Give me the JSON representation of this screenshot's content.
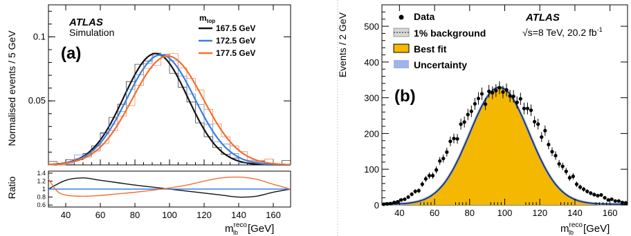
{
  "chart_data": [
    {
      "type": "line",
      "panel_label": "(a)",
      "atlas_label": "ATLAS",
      "atlas_sublabel": "Simulation",
      "legend_title": "m",
      "legend_title_sub": "top",
      "xlabel": "m",
      "xlabel_sup": "reco",
      "xlabel_sub": "lb",
      "xlabel_unit": "[GeV]",
      "ylabel": "Normalised events / 5 GeV",
      "xlim": [
        30,
        170
      ],
      "ylim": [
        0,
        0.125
      ],
      "xticks": [
        40,
        60,
        80,
        100,
        120,
        140,
        160
      ],
      "yticks": [
        0.05,
        0.1
      ],
      "ytick_labels": [
        "0.05",
        "0.1"
      ],
      "series": [
        {
          "name": "167.5 GeV",
          "color": "#111111",
          "mean": 92,
          "sigma": 18.5,
          "peak": 0.087
        },
        {
          "name": "172.5 GeV",
          "color": "#3a7be0",
          "mean": 95,
          "sigma": 19.5,
          "peak": 0.086
        },
        {
          "name": "177.5 GeV",
          "color": "#f07030",
          "mean": 99,
          "sigma": 20.5,
          "peak": 0.085
        }
      ],
      "ratio": {
        "ylabel": "Ratio",
        "ylim": [
          0.55,
          1.45
        ],
        "yticks": [
          0.6,
          0.8,
          1.0,
          1.2,
          1.4
        ],
        "ytick_labels": [
          "0.6",
          "0.8",
          "1",
          "1.2",
          "1.4"
        ],
        "series": [
          {
            "name": "167.5 GeV",
            "color": "#111111",
            "x": [
              30,
              40,
              50,
              60,
              70,
              80,
              90,
              100,
              110,
              120,
              130,
              140,
              150,
              160,
              170
            ],
            "y": [
              1.0,
              1.22,
              1.28,
              1.22,
              1.16,
              1.1,
              1.05,
              1.0,
              0.95,
              0.9,
              0.85,
              0.8,
              0.82,
              0.92,
              1.0
            ]
          },
          {
            "name": "172.5 GeV",
            "color": "#3a7be0",
            "x": [
              30,
              170
            ],
            "y": [
              1.0,
              1.0
            ]
          },
          {
            "name": "177.5 GeV",
            "color": "#f07030",
            "x": [
              30,
              35,
              40,
              50,
              60,
              70,
              80,
              90,
              100,
              110,
              120,
              130,
              140,
              150,
              160,
              170
            ],
            "y": [
              1.25,
              0.95,
              0.85,
              0.82,
              0.84,
              0.88,
              0.92,
              0.97,
              1.03,
              1.1,
              1.2,
              1.28,
              1.3,
              1.25,
              1.12,
              1.0
            ]
          }
        ]
      }
    },
    {
      "type": "scatter",
      "panel_label": "(b)",
      "atlas_label": "ATLAS",
      "energy_label": "√s=8 TeV, 20.2 fb",
      "energy_sup": "-1",
      "xlabel": "m",
      "xlabel_sup": "reco",
      "xlabel_sub": "lb",
      "xlabel_unit": "[GeV]",
      "ylabel": "Events / 2 GeV",
      "xlim": [
        30,
        170
      ],
      "ylim": [
        0,
        560
      ],
      "xticks": [
        40,
        60,
        80,
        100,
        120,
        140,
        160
      ],
      "yticks": [
        0,
        100,
        200,
        300,
        400,
        500
      ],
      "legend": [
        "Data",
        "1% background",
        "Best fit",
        "Uncertainty"
      ],
      "fit": {
        "mean": 97,
        "sigma": 17,
        "peak": 327,
        "color": "#f5b800"
      },
      "data": {
        "x": [
          31,
          33,
          35,
          37,
          39,
          41,
          43,
          45,
          47,
          49,
          51,
          53,
          55,
          57,
          59,
          61,
          63,
          65,
          67,
          69,
          71,
          73,
          75,
          77,
          79,
          81,
          83,
          85,
          87,
          89,
          91,
          93,
          95,
          97,
          99,
          101,
          103,
          105,
          107,
          109,
          111,
          113,
          115,
          117,
          119,
          121,
          123,
          125,
          127,
          129,
          131,
          133,
          135,
          137,
          139,
          141,
          143,
          145,
          147,
          149,
          151,
          153,
          155,
          157,
          159,
          161,
          163,
          165,
          167,
          169
        ],
        "y": [
          2,
          3,
          4,
          7,
          9,
          14,
          16,
          22,
          30,
          38,
          40,
          58,
          73,
          82,
          82,
          98,
          123,
          130,
          148,
          178,
          186,
          185,
          226,
          232,
          253,
          262,
          283,
          298,
          311,
          282,
          318,
          314,
          320,
          328,
          316,
          322,
          305,
          304,
          287,
          297,
          270,
          270,
          265,
          233,
          226,
          190,
          208,
          169,
          149,
          138,
          115,
          108,
          94,
          76,
          80,
          58,
          50,
          44,
          38,
          33,
          29,
          26,
          28,
          20,
          14,
          16,
          11,
          11,
          7,
          6
        ]
      }
    }
  ]
}
